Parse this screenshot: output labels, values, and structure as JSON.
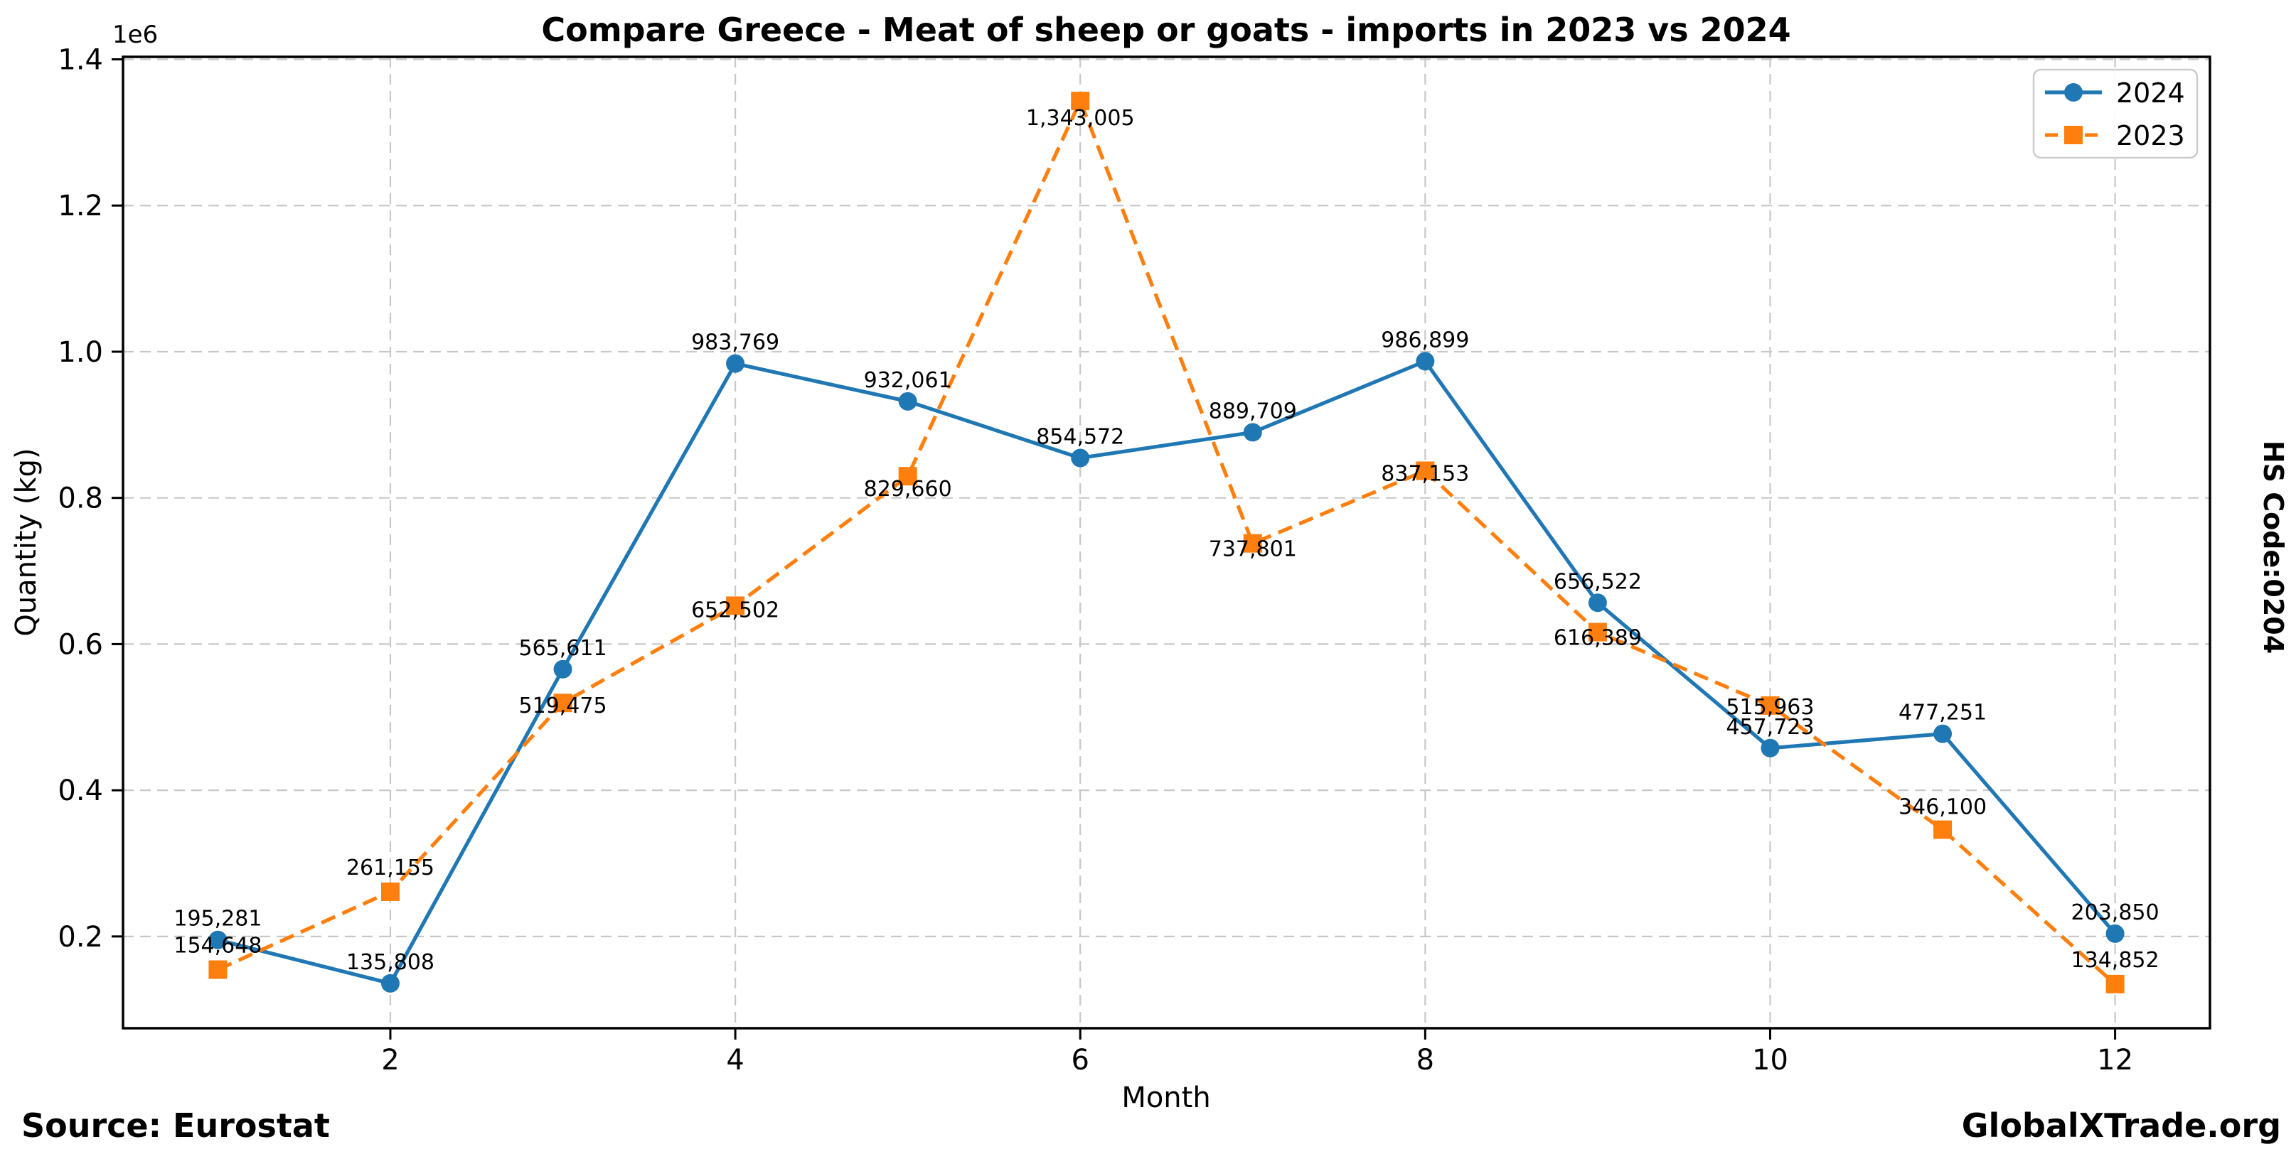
{
  "chart_data": {
    "type": "line",
    "title": "Compare Greece - Meat of sheep or goats - imports in 2023 vs 2024",
    "xlabel": "Month",
    "ylabel": "Quantity (kg)",
    "y_axis_multiplier_label": "1e6",
    "x": [
      1,
      2,
      3,
      4,
      5,
      6,
      7,
      8,
      9,
      10,
      11,
      12
    ],
    "x_ticks": [
      {
        "value": 2,
        "label": "2"
      },
      {
        "value": 4,
        "label": "4"
      },
      {
        "value": 6,
        "label": "6"
      },
      {
        "value": 8,
        "label": "8"
      },
      {
        "value": 10,
        "label": "10"
      },
      {
        "value": 12,
        "label": "12"
      }
    ],
    "y_ticks": [
      {
        "value": 200000,
        "label": "0.2"
      },
      {
        "value": 400000,
        "label": "0.4"
      },
      {
        "value": 600000,
        "label": "0.6"
      },
      {
        "value": 800000,
        "label": "0.8"
      },
      {
        "value": 1000000,
        "label": "1.0"
      },
      {
        "value": 1200000,
        "label": "1.2"
      },
      {
        "value": 1400000,
        "label": "1.4"
      }
    ],
    "xlim": [
      0.45,
      12.55
    ],
    "ylim": [
      74444,
      1403413
    ],
    "grid": true,
    "legend_position": "upper right",
    "series": [
      {
        "name": "2024",
        "color": "#1f77b4",
        "marker": "circle",
        "line_style": "solid",
        "values": [
          195281,
          135808,
          565611,
          983769,
          932061,
          854572,
          889709,
          986899,
          656522,
          457723,
          477251,
          203850
        ]
      },
      {
        "name": "2023",
        "color": "#ff7f0e",
        "marker": "square",
        "line_style": "dashed",
        "values": [
          154648,
          261155,
          519475,
          652502,
          829660,
          1343005,
          737801,
          837153,
          616389,
          515963,
          346100,
          134852
        ]
      }
    ]
  },
  "side_label": "HS Code:0204",
  "footer": {
    "source": "Source: Eurostat",
    "brand": "GlobalXTrade.org"
  },
  "colors": {
    "series_2024": "#1f77b4",
    "series_2023": "#ff7f0e",
    "grid": "#c8c8c8",
    "spine": "#000000",
    "legend_border": "#cccccc",
    "text": "#000000"
  }
}
